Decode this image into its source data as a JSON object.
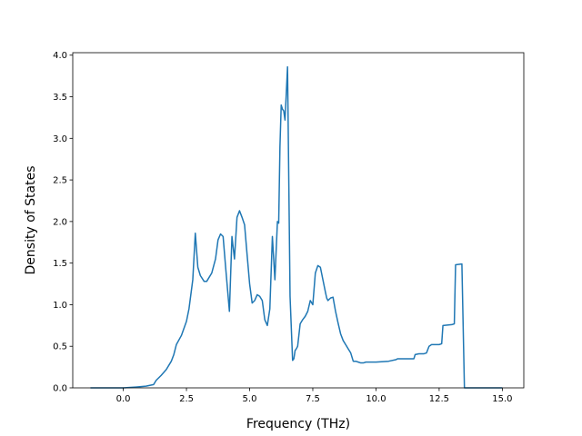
{
  "chart_data": {
    "type": "line",
    "xlabel": "Frequency (THz)",
    "ylabel": "Density of States",
    "xlim": [
      -2.0,
      15.85
    ],
    "ylim": [
      0.0,
      4.03
    ],
    "xticks": [
      0.0,
      2.5,
      5.0,
      7.5,
      10.0,
      12.5,
      15.0
    ],
    "xtick_labels": [
      "0.0",
      "2.5",
      "5.0",
      "7.5",
      "10.0",
      "12.5",
      "15.0"
    ],
    "yticks": [
      0.0,
      0.5,
      1.0,
      1.5,
      2.0,
      2.5,
      3.0,
      3.5,
      4.0
    ],
    "ytick_labels": [
      "0.0",
      "0.5",
      "1.0",
      "1.5",
      "2.0",
      "2.5",
      "3.0",
      "3.5",
      "4.0"
    ],
    "grid": false,
    "line_color": "#1f77b4",
    "series": [
      {
        "x": [
          -1.3,
          -1.0,
          0.0,
          0.5,
          0.9,
          1.2,
          1.3,
          1.5,
          1.7,
          1.9,
          2.0,
          2.1,
          2.3,
          2.5,
          2.6,
          2.75,
          2.85,
          2.95,
          3.05,
          3.2,
          3.3,
          3.5,
          3.65,
          3.75,
          3.85,
          3.95,
          4.05,
          4.2,
          4.3,
          4.4,
          4.5,
          4.6,
          4.7,
          4.8,
          4.9,
          5.0,
          5.1,
          5.2,
          5.3,
          5.4,
          5.5,
          5.6,
          5.7,
          5.8,
          5.9,
          6.0,
          6.1,
          6.15,
          6.2,
          6.25,
          6.3,
          6.35,
          6.4,
          6.5,
          6.6,
          6.7,
          6.75,
          6.8,
          6.85,
          6.9,
          7.0,
          7.1,
          7.2,
          7.3,
          7.4,
          7.5,
          7.6,
          7.7,
          7.8,
          7.9,
          8.0,
          8.05,
          8.1,
          8.2,
          8.3,
          8.4,
          8.5,
          8.6,
          8.7,
          8.8,
          8.9,
          9.0,
          9.1,
          9.2,
          9.3,
          9.4,
          9.5,
          9.6,
          9.8,
          10.0,
          10.5,
          10.8,
          10.85,
          11.2,
          11.5,
          11.55,
          11.7,
          11.9,
          12.0,
          12.1,
          12.2,
          12.5,
          12.6,
          12.65,
          13.0,
          13.1,
          13.15,
          13.4,
          13.5,
          13.6,
          13.65,
          13.7,
          13.75,
          13.8,
          14.0,
          15.0
        ],
        "values": [
          0.0,
          0.0,
          0.0,
          0.01,
          0.02,
          0.04,
          0.09,
          0.15,
          0.22,
          0.32,
          0.4,
          0.52,
          0.63,
          0.8,
          0.95,
          1.3,
          1.86,
          1.45,
          1.35,
          1.28,
          1.28,
          1.38,
          1.55,
          1.78,
          1.85,
          1.82,
          1.45,
          0.92,
          1.82,
          1.55,
          2.05,
          2.13,
          2.05,
          1.96,
          1.6,
          1.25,
          1.02,
          1.05,
          1.12,
          1.1,
          1.05,
          0.82,
          0.75,
          0.95,
          1.82,
          1.3,
          2.0,
          1.98,
          2.9,
          3.4,
          3.35,
          3.33,
          3.22,
          3.86,
          1.1,
          0.33,
          0.35,
          0.45,
          0.47,
          0.5,
          0.77,
          0.82,
          0.86,
          0.92,
          1.05,
          1.0,
          1.38,
          1.47,
          1.45,
          1.3,
          1.15,
          1.08,
          1.05,
          1.08,
          1.09,
          0.92,
          0.78,
          0.65,
          0.57,
          0.52,
          0.47,
          0.42,
          0.32,
          0.32,
          0.31,
          0.3,
          0.3,
          0.31,
          0.31,
          0.31,
          0.32,
          0.34,
          0.35,
          0.35,
          0.35,
          0.4,
          0.41,
          0.41,
          0.42,
          0.5,
          0.52,
          0.52,
          0.53,
          0.75,
          0.76,
          0.77,
          1.48,
          1.49,
          0.0,
          0.0,
          0.0,
          0.0,
          0.0,
          0.0,
          0.0,
          0.0
        ]
      }
    ]
  }
}
